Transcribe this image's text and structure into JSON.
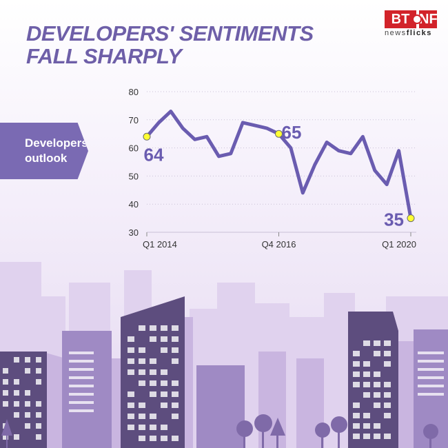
{
  "title_lines": [
    "DEVELOPERS' SENTIMENTS",
    "FALL SHARPLY"
  ],
  "brand": {
    "main": "BT",
    "second": "NF",
    "sub_light": "news",
    "sub_bold": "flicks"
  },
  "tag_lines": [
    "Developers'",
    "outlook"
  ],
  "colors": {
    "line": "#6a5cb0",
    "accent_point": "#ffff33",
    "title": "#6e5fa8",
    "grid": "#c9c0d6"
  },
  "chart_data": {
    "type": "line",
    "title": "DEVELOPERS' SENTIMENTS FALL SHARPLY",
    "ylabel": "Developers' outlook",
    "ylim": [
      30,
      80
    ],
    "yticks": [
      30,
      40,
      50,
      60,
      70,
      80
    ],
    "x_tick_labels": [
      {
        "index": 0,
        "label": "Q1 2014"
      },
      {
        "index": 11,
        "label": "Q4 2016"
      },
      {
        "index": 24,
        "label": "Q1 2020"
      }
    ],
    "series": [
      {
        "values": [
          64,
          69,
          73,
          67,
          63,
          64,
          57,
          58,
          69,
          68,
          67,
          65,
          60,
          44,
          54,
          62,
          59,
          58,
          64,
          52,
          47,
          59,
          35
        ]
      }
    ],
    "annotations": [
      {
        "index": 0,
        "label": "64"
      },
      {
        "index": 11,
        "label": "65"
      },
      {
        "index": 22,
        "label": "35"
      }
    ]
  }
}
